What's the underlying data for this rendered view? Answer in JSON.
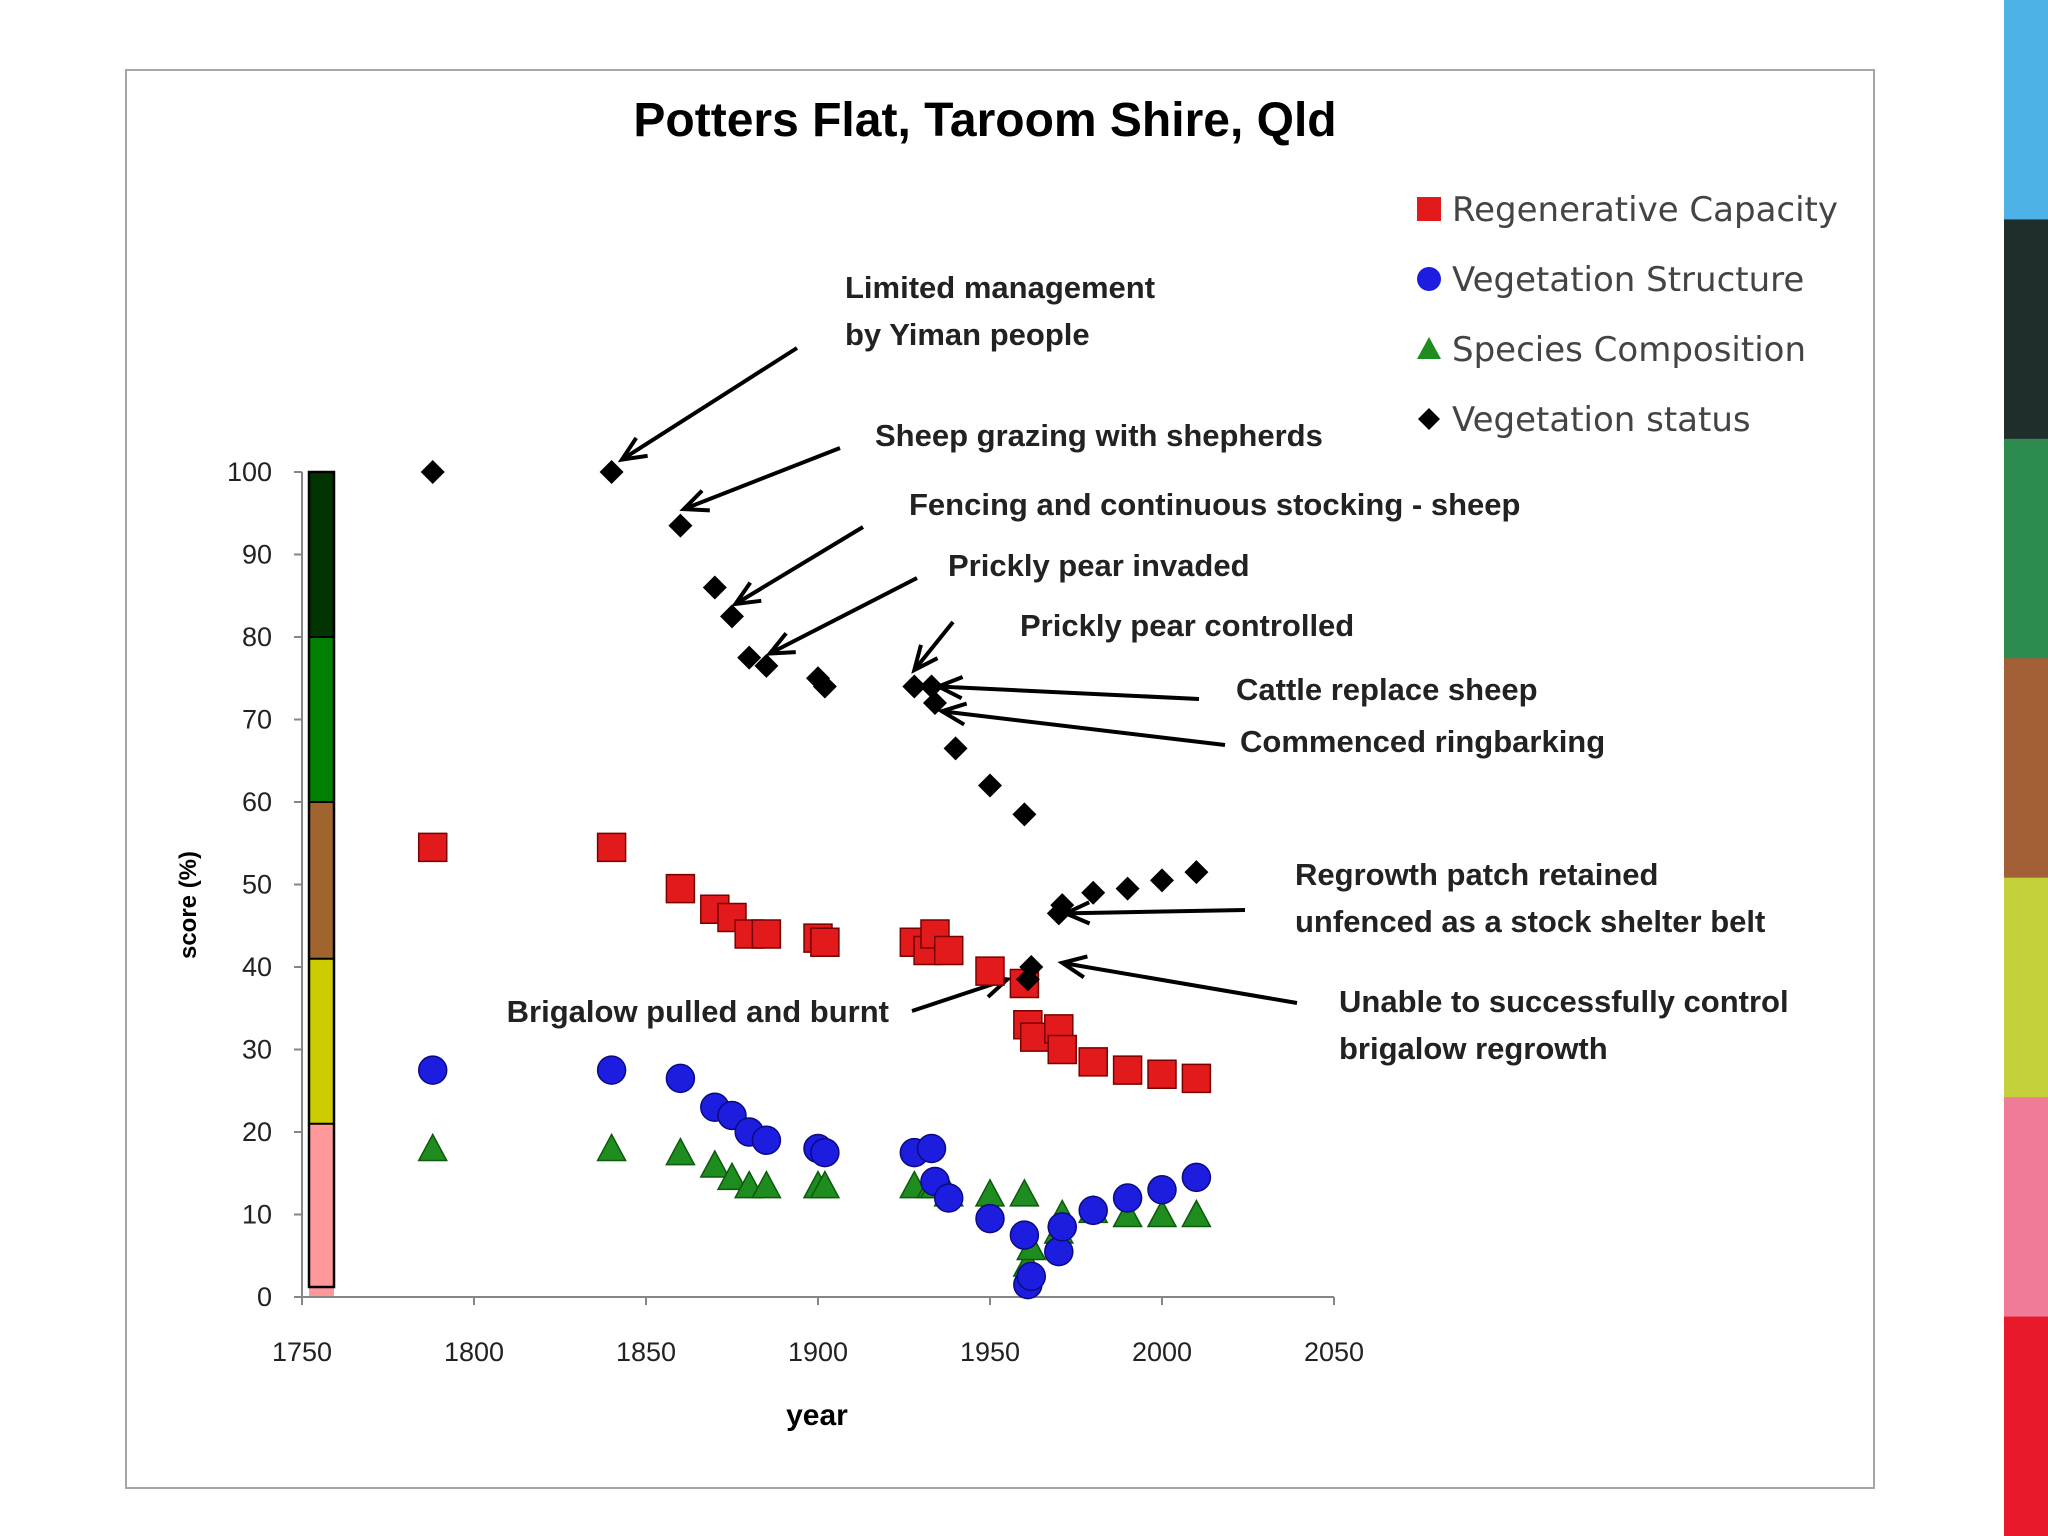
{
  "chart_data": {
    "type": "scatter",
    "title": "Potters Flat, Taroom Shire, Qld",
    "xlabel": "year",
    "ylabel": "score (%)",
    "xlim": [
      1750,
      2050
    ],
    "ylim": [
      0,
      100
    ],
    "xticks": [
      1750,
      1800,
      1850,
      1900,
      1950,
      2000,
      2050
    ],
    "yticks": [
      0,
      10,
      20,
      30,
      40,
      50,
      60,
      70,
      80,
      90,
      100
    ],
    "grid": false,
    "legend_position": "top-right",
    "series": [
      {
        "name": "Regenerative Capacity",
        "marker": "square",
        "color": "#e31a1c",
        "points": [
          [
            1788,
            54.5
          ],
          [
            1840,
            54.5
          ],
          [
            1860,
            49.5
          ],
          [
            1870,
            47
          ],
          [
            1875,
            46
          ],
          [
            1880,
            44
          ],
          [
            1885,
            44
          ],
          [
            1900,
            43.5
          ],
          [
            1902,
            43
          ],
          [
            1928,
            43
          ],
          [
            1932,
            42
          ],
          [
            1934,
            44
          ],
          [
            1938,
            42
          ],
          [
            1950,
            39.5
          ],
          [
            1960,
            38
          ],
          [
            1961,
            33
          ],
          [
            1963,
            31.5
          ],
          [
            1970,
            32.5
          ],
          [
            1971,
            30
          ],
          [
            1980,
            28.5
          ],
          [
            1990,
            27.5
          ],
          [
            2000,
            27
          ],
          [
            2010,
            26.5
          ]
        ]
      },
      {
        "name": "Vegetation Structure",
        "marker": "circle",
        "color": "#1d1de0",
        "points": [
          [
            1788,
            27.5
          ],
          [
            1840,
            27.5
          ],
          [
            1860,
            26.5
          ],
          [
            1870,
            23
          ],
          [
            1875,
            22
          ],
          [
            1880,
            20
          ],
          [
            1885,
            19
          ],
          [
            1900,
            18
          ],
          [
            1902,
            17.5
          ],
          [
            1928,
            17.5
          ],
          [
            1933,
            18
          ],
          [
            1934,
            14
          ],
          [
            1938,
            12
          ],
          [
            1950,
            9.5
          ],
          [
            1960,
            7.5
          ],
          [
            1961,
            1.5
          ],
          [
            1962,
            2.5
          ],
          [
            1970,
            5.5
          ],
          [
            1971,
            8.5
          ],
          [
            1980,
            10.5
          ],
          [
            1990,
            12
          ],
          [
            2000,
            13
          ],
          [
            2010,
            14.5
          ]
        ]
      },
      {
        "name": "Species Composition",
        "marker": "triangle",
        "color": "#1e8c1e",
        "points": [
          [
            1788,
            18
          ],
          [
            1840,
            18
          ],
          [
            1860,
            17.5
          ],
          [
            1870,
            16
          ],
          [
            1875,
            14.5
          ],
          [
            1880,
            13.5
          ],
          [
            1885,
            13.5
          ],
          [
            1900,
            13.5
          ],
          [
            1902,
            13.5
          ],
          [
            1928,
            13.5
          ],
          [
            1933,
            13.5
          ],
          [
            1934,
            13.5
          ],
          [
            1938,
            12.5
          ],
          [
            1950,
            12.5
          ],
          [
            1960,
            12.5
          ],
          [
            1961,
            4
          ],
          [
            1962,
            6
          ],
          [
            1970,
            8
          ],
          [
            1971,
            10
          ],
          [
            1980,
            10.5
          ],
          [
            1990,
            10
          ],
          [
            2000,
            10
          ],
          [
            2010,
            10
          ]
        ]
      },
      {
        "name": "Vegetation status",
        "marker": "diamond",
        "color": "#000000",
        "points": [
          [
            1788,
            100
          ],
          [
            1840,
            100
          ],
          [
            1860,
            93.5
          ],
          [
            1870,
            86
          ],
          [
            1875,
            82.5
          ],
          [
            1880,
            77.5
          ],
          [
            1885,
            76.5
          ],
          [
            1900,
            75
          ],
          [
            1902,
            74
          ],
          [
            1928,
            74
          ],
          [
            1933,
            74
          ],
          [
            1934,
            72
          ],
          [
            1940,
            66.5
          ],
          [
            1950,
            62
          ],
          [
            1960,
            58.5
          ],
          [
            1961,
            38.5
          ],
          [
            1962,
            40
          ],
          [
            1970,
            46.5
          ],
          [
            1971,
            47.5
          ],
          [
            1980,
            49
          ],
          [
            1990,
            49.5
          ],
          [
            2000,
            50.5
          ],
          [
            2010,
            51.5
          ]
        ]
      }
    ],
    "status_bands": [
      {
        "from": 0,
        "to": 21,
        "color": "#ff9999"
      },
      {
        "from": 21,
        "to": 41,
        "color": "#cccc00"
      },
      {
        "from": 41,
        "to": 60,
        "color": "#a0642e"
      },
      {
        "from": 60,
        "to": 80,
        "color": "#008000"
      },
      {
        "from": 80,
        "to": 100,
        "color": "#003300"
      }
    ],
    "annotations": [
      {
        "lines": [
          "Limited management",
          "by Yiman people"
        ],
        "target": [
          1843,
          101.5
        ]
      },
      {
        "lines": [
          "Sheep grazing with shepherds"
        ],
        "target": [
          1861,
          95.5
        ]
      },
      {
        "lines": [
          "Fencing and continuous stocking - sheep"
        ],
        "target": [
          1876,
          84
        ]
      },
      {
        "lines": [
          "Prickly pear invaded"
        ],
        "target": [
          1886,
          78
        ]
      },
      {
        "lines": [
          "Prickly pear controlled"
        ],
        "target": [
          1928,
          76
        ]
      },
      {
        "lines": [
          "Cattle replace sheep"
        ],
        "target": [
          1935,
          74
        ]
      },
      {
        "lines": [
          "Commenced ringbarking"
        ],
        "target": [
          1936,
          71
        ]
      },
      {
        "lines": [
          "Regrowth patch retained",
          "unfenced as a stock shelter belt"
        ],
        "target": [
          1972,
          46.5
        ]
      },
      {
        "lines": [
          "Unable to successfully control",
          "brigalow regrowth"
        ],
        "target": [
          1971,
          40.5
        ]
      },
      {
        "lines": [
          "Brigalow pulled and burnt"
        ],
        "target": [
          1955,
          38.5
        ]
      }
    ]
  },
  "side_bar_colors": [
    "#4db3e6",
    "#1f2e2a",
    "#2e8b4f",
    "#a35f36",
    "#c5d13a",
    "#f07b96",
    "#e8192b"
  ]
}
